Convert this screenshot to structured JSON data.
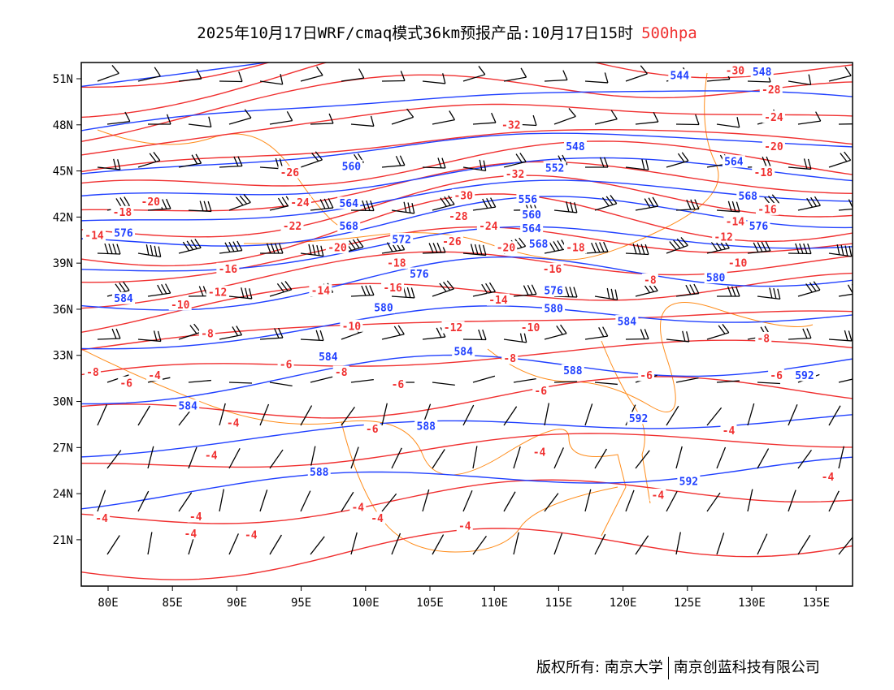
{
  "title": {
    "main": "2025年10月17日WRF/cmaq模式36km预报产品:10月17日15时",
    "level": "500hpa"
  },
  "axes": {
    "lon_ticks": [
      "80E",
      "85E",
      "90E",
      "95E",
      "100E",
      "105E",
      "110E",
      "115E",
      "120E",
      "125E",
      "130E",
      "135E"
    ],
    "lon_values": [
      80,
      85,
      90,
      95,
      100,
      105,
      110,
      115,
      120,
      125,
      130,
      135
    ],
    "lat_ticks": [
      "51N",
      "48N",
      "45N",
      "42N",
      "39N",
      "36N",
      "33N",
      "30N",
      "27N",
      "24N",
      "21N"
    ],
    "lat_values": [
      51,
      48,
      45,
      42,
      39,
      36,
      33,
      30,
      27,
      24,
      21
    ],
    "lon_range": [
      77.9,
      137.8
    ],
    "lat_range": [
      17.1,
      52.1
    ]
  },
  "colors": {
    "temperature": "#f03030",
    "height": "#2040ff",
    "border": "#ff8c1a",
    "wind": "#000000"
  },
  "temperature_labels": [
    {
      "v": "-30",
      "lon": 128.7,
      "lat": 51.7
    },
    {
      "v": "-28",
      "lon": 131.5,
      "lat": 50.3
    },
    {
      "v": "-24",
      "lon": 131.7,
      "lat": 48.5
    },
    {
      "v": "-20",
      "lon": 131.7,
      "lat": 46.6
    },
    {
      "v": "-18",
      "lon": 130.9,
      "lat": 44.9
    },
    {
      "v": "-16",
      "lon": 131.2,
      "lat": 42.5
    },
    {
      "v": "-14",
      "lon": 128.7,
      "lat": 41.7
    },
    {
      "v": "-12",
      "lon": 127.8,
      "lat": 40.7
    },
    {
      "v": "-10",
      "lon": 128.9,
      "lat": 39.0
    },
    {
      "v": "-8",
      "lon": 122.1,
      "lat": 37.9
    },
    {
      "v": "-8",
      "lon": 130.9,
      "lat": 34.1
    },
    {
      "v": "-6",
      "lon": 131.9,
      "lat": 31.7
    },
    {
      "v": "-32",
      "lon": 111.3,
      "lat": 48.0
    },
    {
      "v": "-32",
      "lon": 111.6,
      "lat": 44.8
    },
    {
      "v": "-30",
      "lon": 107.6,
      "lat": 43.4
    },
    {
      "v": "-28",
      "lon": 107.2,
      "lat": 42.9
    },
    {
      "v": "-26",
      "lon": 106.7,
      "lat": 42.1
    },
    {
      "v": "-24",
      "lon": 108.4,
      "lat": 41.4
    },
    {
      "v": "-20",
      "lon": 110.9,
      "lat": 40.0
    },
    {
      "v": "-18",
      "lon": 116.3,
      "lat": 40.0
    },
    {
      "v": "-16",
      "lon": 114.5,
      "lat": 38.6
    },
    {
      "v": "-14",
      "lon": 110.3,
      "lat": 36.6
    },
    {
      "v": "-10",
      "lon": 112.8,
      "lat": 34.8
    },
    {
      "v": "-8",
      "lon": 111.2,
      "lat": 32.8
    },
    {
      "v": "-6",
      "lon": 113.6,
      "lat": 30.7
    },
    {
      "v": "-6",
      "lon": 121.8,
      "lat": 31.7
    },
    {
      "v": "-4",
      "lon": 113.5,
      "lat": 26.7
    },
    {
      "v": "-4",
      "lon": 128.2,
      "lat": 28.1
    },
    {
      "v": "-4",
      "lon": 135.9,
      "lat": 25.1
    },
    {
      "v": "-4",
      "lon": 122.7,
      "lat": 23.9
    },
    {
      "v": "-4",
      "lon": 107.7,
      "lat": 21.9
    },
    {
      "v": "-4",
      "lon": 100.9,
      "lat": 22.4
    },
    {
      "v": "-4",
      "lon": 99.4,
      "lat": 23.1
    },
    {
      "v": "-6",
      "lon": 100.5,
      "lat": 28.2
    },
    {
      "v": "-6",
      "lon": 102.5,
      "lat": 31.1
    },
    {
      "v": "-6",
      "lon": 93.8,
      "lat": 32.4
    },
    {
      "v": "-8",
      "lon": 98.1,
      "lat": 31.9
    },
    {
      "v": "-8",
      "lon": 87.7,
      "lat": 34.4
    },
    {
      "v": "-8",
      "lon": 78.8,
      "lat": 31.9
    },
    {
      "v": "-6",
      "lon": 81.4,
      "lat": 31.2
    },
    {
      "v": "-4",
      "lon": 83.6,
      "lat": 31.7
    },
    {
      "v": "-10",
      "lon": 85.6,
      "lat": 36.3
    },
    {
      "v": "-12",
      "lon": 88.5,
      "lat": 37.1
    },
    {
      "v": "-14",
      "lon": 96.5,
      "lat": 37.2
    },
    {
      "v": "-16",
      "lon": 89.3,
      "lat": 38.6
    },
    {
      "v": "-18",
      "lon": 102.4,
      "lat": 39.0
    },
    {
      "v": "-16",
      "lon": 102.1,
      "lat": 37.4
    },
    {
      "v": "-20",
      "lon": 97.8,
      "lat": 40.0
    },
    {
      "v": "-22",
      "lon": 94.3,
      "lat": 41.4
    },
    {
      "v": "-24",
      "lon": 94.9,
      "lat": 42.1
    },
    {
      "v": "-26",
      "lon": 94.1,
      "lat": 44.9
    },
    {
      "v": "-20",
      "lon": 83.3,
      "lat": 43.0
    },
    {
      "v": "-18",
      "lon": 81.1,
      "lat": 42.3
    },
    {
      "v": "-14",
      "lon": 78.9,
      "lat": 40.8
    },
    {
      "v": "-12",
      "lon": 106.8,
      "lat": 34.8
    },
    {
      "v": "-10",
      "lon": 98.9,
      "lat": 34.9
    },
    {
      "v": "-4",
      "lon": 88.0,
      "lat": 26.5
    },
    {
      "v": "-4",
      "lon": 86.8,
      "lat": 22.5
    },
    {
      "v": "-4",
      "lon": 86.4,
      "lat": 21.4
    },
    {
      "v": "-4",
      "lon": 79.5,
      "lat": 22.4
    },
    {
      "v": "-4",
      "lon": 91.1,
      "lat": 21.3
    },
    {
      "v": "-4",
      "lon": 89.7,
      "lat": 28.6
    }
  ],
  "height_labels": [
    {
      "v": "544",
      "lon": 124.4,
      "lat": 51.2
    },
    {
      "v": "548",
      "lon": 130.8,
      "lat": 50.6
    },
    {
      "v": "548",
      "lon": 116.3,
      "lat": 46.6
    },
    {
      "v": "552",
      "lon": 114.7,
      "lat": 45.2
    },
    {
      "v": "556",
      "lon": 112.6,
      "lat": 44.0
    },
    {
      "v": "560",
      "lon": 112.9,
      "lat": 43.0
    },
    {
      "v": "564",
      "lon": 112.9,
      "lat": 42.1
    },
    {
      "v": "568",
      "lon": 112.3,
      "lat": 41.1
    },
    {
      "v": "576",
      "lon": 114.6,
      "lat": 38.9
    },
    {
      "v": "580",
      "lon": 114.6,
      "lat": 36.9
    },
    {
      "v": "584",
      "lon": 120.3,
      "lat": 35.2
    },
    {
      "v": "588",
      "lon": 116.1,
      "lat": 32.0
    },
    {
      "v": "592",
      "lon": 121.2,
      "lat": 28.9
    },
    {
      "v": "592",
      "lon": 134.1,
      "lat": 31.7
    },
    {
      "v": "592",
      "lon": 125.1,
      "lat": 24.8
    },
    {
      "v": "580",
      "lon": 127.2,
      "lat": 38.9
    },
    {
      "v": "576",
      "lon": 129.4,
      "lat": 41.4
    },
    {
      "v": "568",
      "lon": 129.7,
      "lat": 44.2
    },
    {
      "v": "564",
      "lon": 128.6,
      "lat": 45.6
    },
    {
      "v": "560",
      "lon": 98.9,
      "lat": 45.3
    },
    {
      "v": "564",
      "lon": 98.7,
      "lat": 42.9
    },
    {
      "v": "568",
      "lon": 98.7,
      "lat": 41.4
    },
    {
      "v": "572",
      "lon": 102.8,
      "lat": 39.7
    },
    {
      "v": "576",
      "lon": 101.9,
      "lat": 38.3
    },
    {
      "v": "580",
      "lon": 101.4,
      "lat": 36.1
    },
    {
      "v": "584",
      "lon": 81.2,
      "lat": 36.7
    },
    {
      "v": "584",
      "lon": 97.1,
      "lat": 32.9
    },
    {
      "v": "584",
      "lon": 86.2,
      "lat": 29.7
    },
    {
      "v": "588",
      "lon": 104.7,
      "lat": 28.4
    },
    {
      "v": "588",
      "lon": 96.4,
      "lat": 25.4
    },
    {
      "v": "576",
      "lon": 81.2,
      "lat": 41.8
    },
    {
      "v": "584",
      "lon": 107.6,
      "lat": 34.1
    }
  ],
  "footer": {
    "copyright": "版权所有: 南京大学",
    "company": "南京创蓝科技有限公司"
  }
}
